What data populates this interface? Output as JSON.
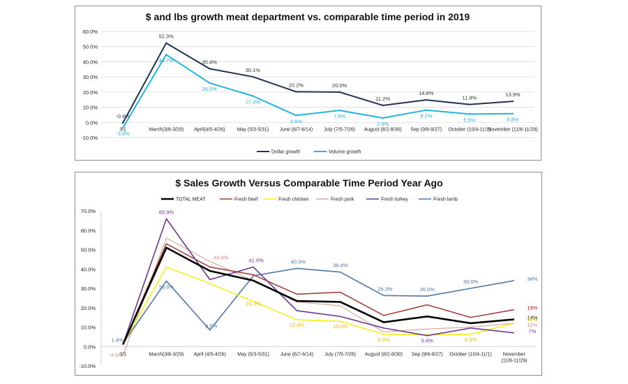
{
  "chart_data": [
    {
      "type": "line",
      "title": "$ and lbs growth meat department vs. comparable time period in 2019",
      "categories": [
        "3/1",
        "March(3/8-3/29)",
        "April(4/5-4/26)",
        "May (5/3-5/31)",
        "June (6/7-6/14)",
        "July (7/5-7/26)",
        "August (8/2-8/30)",
        "Sep (9/6-9/27)",
        "October (10/4-11/1)",
        "November (11/8-11/29)"
      ],
      "yticks": [
        "60.0%",
        "50.0%",
        "40.0%",
        "30.0%",
        "20.0%",
        "10.0%",
        "0.0%",
        "-10.0%"
      ],
      "ylim": [
        -10,
        60
      ],
      "legend_position": "bottom",
      "series": [
        {
          "name": "Dollar growth",
          "color": "#1f3552",
          "values": [
            -0.4,
            52.3,
            35.4,
            30.1,
            20.2,
            20.0,
            11.2,
            14.8,
            11.8,
            13.9
          ],
          "labels": [
            "-0.4%",
            "52.3%",
            "35.4%",
            "30.1%",
            "20.2%",
            "20.0%",
            "11.2%",
            "14.8%",
            "11.8%",
            "13.9%"
          ]
        },
        {
          "name": "Volume growth",
          "color": "#22b5dc",
          "values": [
            -3.6,
            44.7,
            26.0,
            17.4,
            4.6,
            7.9,
            2.9,
            8.1,
            5.5,
            5.8
          ],
          "labels": [
            "-3.6%",
            "44.7%",
            "26.0%",
            "17.4%",
            "4.6%",
            "7.9%",
            "2.9%",
            "8.1%",
            "5.5%",
            "5.8%"
          ]
        }
      ]
    },
    {
      "type": "line",
      "title": "$ Sales Growth Versus Comparable Time Period Year Ago",
      "categories": [
        "3/1",
        "March(3/8-3/29)",
        "April (4/5-4/26)",
        "May (5/3-5/31)",
        "June (6/7-6/14)",
        "July (7/5-7/26)",
        "August (8/2-8/30)",
        "Sep (9/6-9/27)",
        "October (10/4-11/1)",
        "November (11/8-11/29)"
      ],
      "yticks": [
        "70.0%",
        "60.0%",
        "50.0%",
        "40.0%",
        "30.0%",
        "20.0%",
        "10.0%",
        "0.0%",
        "-10.0%"
      ],
      "ylim": [
        -10,
        70
      ],
      "legend_position": "top",
      "series": [
        {
          "name": "TOTAL MEAT",
          "color": "#000000",
          "width": 2.6,
          "values": [
            1,
            51,
            39,
            34,
            23.5,
            23,
            12.5,
            15.5,
            12,
            14
          ]
        },
        {
          "name": "Fresh beef",
          "color": "#a5403a",
          "width": 1.6,
          "values": [
            1,
            53,
            41,
            37,
            27,
            28,
            16,
            21.5,
            15,
            19
          ]
        },
        {
          "name": "Fresh chicken",
          "color": "#f5ee1b",
          "width": 1.6,
          "values": [
            1,
            41,
            32.5,
            23.3,
            13.8,
            13.0,
            6.3,
            6.0,
            6.3,
            12
          ]
        },
        {
          "name": "Fresh pork",
          "color": "#d8aaa4",
          "width": 1.2,
          "values": [
            -4.6,
            56,
            43.9,
            34,
            23,
            21,
            7.5,
            9,
            10,
            12
          ]
        },
        {
          "name": "Fresh turkey",
          "color": "#6c3593",
          "width": 1.6,
          "values": [
            1,
            65.9,
            34.5,
            41.0,
            18.5,
            15.5,
            9.5,
            5.6,
            9.5,
            7
          ]
        },
        {
          "name": "Fresh lamb",
          "color": "#4f78aa",
          "width": 1.6,
          "values": [
            1.4,
            33.8,
            8.5,
            36.5,
            40.3,
            38.4,
            26.3,
            26.0,
            30.0,
            34
          ]
        }
      ],
      "data_labels": [
        {
          "text": "65.9%",
          "color": "#6c3593"
        },
        {
          "text": "33.8%",
          "color": "#4f78aa"
        },
        {
          "text": "43.9%",
          "color": "#d98a83"
        },
        {
          "text": "8.5%",
          "color": "#4f78aa"
        },
        {
          "text": "41.0%",
          "color": "#6c3593"
        },
        {
          "text": "23.3%",
          "color": "#f0b800"
        },
        {
          "text": "40.3%",
          "color": "#4f78aa"
        },
        {
          "text": "38.4%",
          "color": "#4f78aa"
        },
        {
          "text": "13.8%",
          "color": "#f0b800"
        },
        {
          "text": "13.0%",
          "color": "#f0b800"
        },
        {
          "text": "26.3%",
          "color": "#4f78aa"
        },
        {
          "text": "6.3%",
          "color": "#f0b800"
        },
        {
          "text": "26.0%",
          "color": "#4f78aa"
        },
        {
          "text": "5.6%",
          "color": "#6c3593"
        },
        {
          "text": "30.0%",
          "color": "#4f78aa"
        },
        {
          "text": "6.3%",
          "color": "#f0b800"
        },
        {
          "text": "34%",
          "color": "#4f78aa"
        },
        {
          "text": "19%",
          "color": "#c0101f"
        },
        {
          "text": "14%",
          "color": "#000000"
        },
        {
          "text": "12%",
          "color": "#f0b800"
        },
        {
          "text": "12%",
          "color": "#d98a83"
        },
        {
          "text": "7%",
          "color": "#6c3593"
        },
        {
          "text": "1.4%",
          "color": "#4f78aa"
        },
        {
          "text": "-4.6%",
          "color": "#d98a83"
        }
      ]
    }
  ]
}
